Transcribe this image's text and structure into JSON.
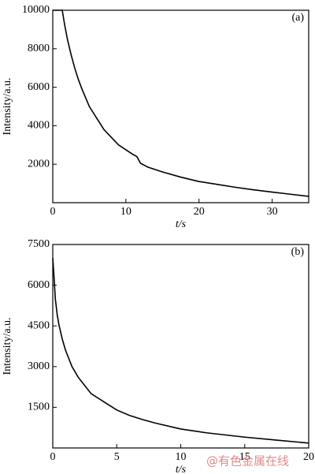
{
  "chart_data": [
    {
      "type": "line",
      "annotation": "(a)",
      "x_label": "t/s",
      "y_label": "Intensity/a.u.",
      "xlim": [
        0,
        35
      ],
      "xticks": [
        0,
        10,
        20,
        30
      ],
      "ylim": [
        0,
        10000
      ],
      "yticks": [
        2000,
        4000,
        6000,
        8000,
        10000
      ],
      "series": [
        {
          "color": "#000000",
          "x": [
            0,
            1.3,
            1.6,
            2,
            2.5,
            3,
            3.5,
            4,
            5,
            6,
            7,
            8,
            9,
            10,
            11,
            11.5,
            12,
            12.5,
            13,
            15,
            17.5,
            20,
            22.5,
            25,
            27.5,
            30,
            32.5,
            35
          ],
          "values": [
            10000,
            10000,
            9300,
            8500,
            7700,
            7000,
            6400,
            5900,
            5000,
            4400,
            3800,
            3400,
            3000,
            2750,
            2500,
            2400,
            2050,
            1950,
            1850,
            1600,
            1330,
            1100,
            950,
            800,
            670,
            550,
            440,
            330
          ]
        }
      ]
    },
    {
      "type": "line",
      "annotation": "(b)",
      "x_label": "t/s",
      "y_label": "Intensity/a.u.",
      "xlim": [
        0,
        20
      ],
      "xticks": [
        0,
        5,
        10,
        15,
        20
      ],
      "ylim": [
        0,
        7500
      ],
      "yticks": [
        1500,
        3000,
        4500,
        6000,
        7500
      ],
      "series": [
        {
          "color": "#000000",
          "x": [
            0,
            0.1,
            0.2,
            0.35,
            0.5,
            0.75,
            1,
            1.5,
            2,
            2.5,
            3,
            4,
            5,
            6,
            7,
            8,
            10,
            12,
            15,
            17.5,
            20
          ],
          "values": [
            7000,
            6300,
            5500,
            4900,
            4500,
            4000,
            3600,
            3000,
            2600,
            2300,
            2000,
            1700,
            1400,
            1200,
            1050,
            920,
            700,
            560,
            400,
            290,
            180
          ]
        }
      ]
    }
  ],
  "watermark": "@有色金属在线"
}
